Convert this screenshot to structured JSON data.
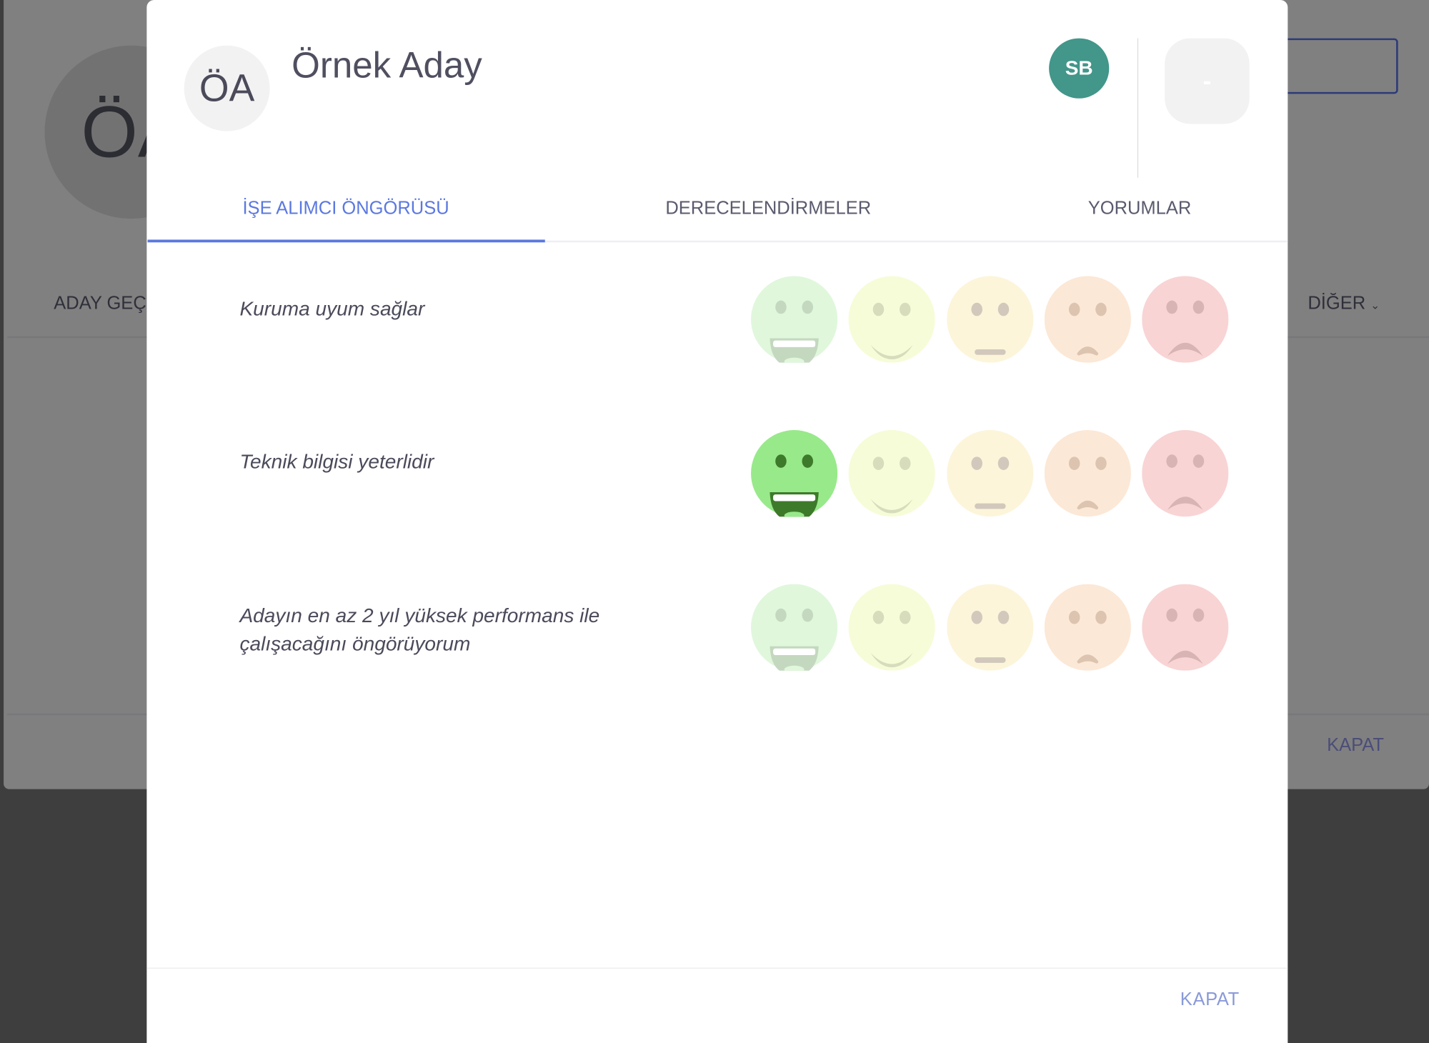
{
  "background": {
    "avatar_initials": "ÖA",
    "tab_left": "ADAY GEÇMİŞİ",
    "tab_right": "DİĞER",
    "close_label": "KAPAT"
  },
  "modal": {
    "avatar_initials": "ÖA",
    "candidate_name": "Örnek Aday",
    "reviewer_initials": "SB",
    "reviewer_color": "#42968a",
    "score": "-",
    "tabs": [
      {
        "label": "İŞE ALIMCI ÖNGÖRÜSÜ",
        "active": true
      },
      {
        "label": "DERECELENDİRMELER",
        "active": false
      },
      {
        "label": "YORUMLAR",
        "active": false
      }
    ],
    "accent_color": "#5b78e0",
    "rating_scale": [
      "very-happy-face-icon",
      "smile-face-icon",
      "neutral-face-icon",
      "slight-frown-face-icon",
      "sad-face-icon"
    ],
    "questions": [
      {
        "label": "Kuruma uyum sağlar",
        "selected": null
      },
      {
        "label": "Teknik bilgisi yeterlidir",
        "selected": 0
      },
      {
        "label": "Adayın en az 2 yıl yüksek performans ile çalışacağını öngörüyorum",
        "selected": null
      }
    ],
    "close_label": "KAPAT"
  }
}
